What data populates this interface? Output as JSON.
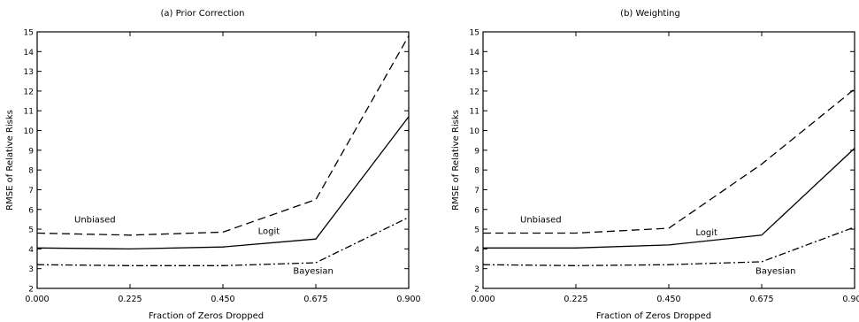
{
  "chart_data": [
    {
      "type": "line",
      "title": "(a) Prior Correction",
      "xlabel": "Fraction of Zeros Dropped",
      "ylabel": "RMSE of Relative Risks",
      "xlim": [
        0,
        0.9
      ],
      "ylim": [
        2,
        15
      ],
      "x": [
        0.0,
        0.225,
        0.45,
        0.675,
        0.9
      ],
      "x_ticks": [
        "0.000",
        "0.225",
        "0.450",
        "0.675",
        "0.900"
      ],
      "y_ticks": [
        "2",
        "3",
        "4",
        "5",
        "6",
        "7",
        "8",
        "9",
        "10",
        "11",
        "12",
        "13",
        "14",
        "15"
      ],
      "grid": false,
      "series": [
        {
          "name": "Unbiased",
          "style": "dashed",
          "values": [
            4.8,
            4.7,
            4.85,
            6.5,
            14.8
          ]
        },
        {
          "name": "Logit",
          "style": "solid",
          "values": [
            4.05,
            4.0,
            4.1,
            4.5,
            10.7
          ]
        },
        {
          "name": "Bayesian",
          "style": "dash-dot",
          "values": [
            3.2,
            3.15,
            3.15,
            3.3,
            5.6
          ]
        }
      ],
      "annotations": [
        {
          "text": "Unbiased",
          "x": 0.09,
          "y": 5.35
        },
        {
          "text": "Logit",
          "x": 0.535,
          "y": 4.75
        },
        {
          "text": "Bayesian",
          "x": 0.62,
          "y": 2.75
        }
      ]
    },
    {
      "type": "line",
      "title": "(b) Weighting",
      "xlabel": "Fraction of Zeros Dropped",
      "ylabel": "RMSE of Relative Risks",
      "xlim": [
        0,
        0.9
      ],
      "ylim": [
        2,
        15
      ],
      "x": [
        0.0,
        0.225,
        0.45,
        0.675,
        0.9
      ],
      "x_ticks": [
        "0.000",
        "0.225",
        "0.450",
        "0.675",
        "0.900"
      ],
      "y_ticks": [
        "2",
        "3",
        "4",
        "5",
        "6",
        "7",
        "8",
        "9",
        "10",
        "11",
        "12",
        "13",
        "14",
        "15"
      ],
      "grid": false,
      "series": [
        {
          "name": "Unbiased",
          "style": "dashed",
          "values": [
            4.8,
            4.8,
            5.05,
            8.3,
            12.1
          ]
        },
        {
          "name": "Logit",
          "style": "solid",
          "values": [
            4.05,
            4.05,
            4.2,
            4.7,
            9.1
          ]
        },
        {
          "name": "Bayesian",
          "style": "dash-dot",
          "values": [
            3.2,
            3.15,
            3.2,
            3.35,
            5.1
          ]
        }
      ],
      "annotations": [
        {
          "text": "Unbiased",
          "x": 0.09,
          "y": 5.35
        },
        {
          "text": "Logit",
          "x": 0.515,
          "y": 4.7
        },
        {
          "text": "Bayesian",
          "x": 0.66,
          "y": 2.75
        }
      ]
    }
  ]
}
